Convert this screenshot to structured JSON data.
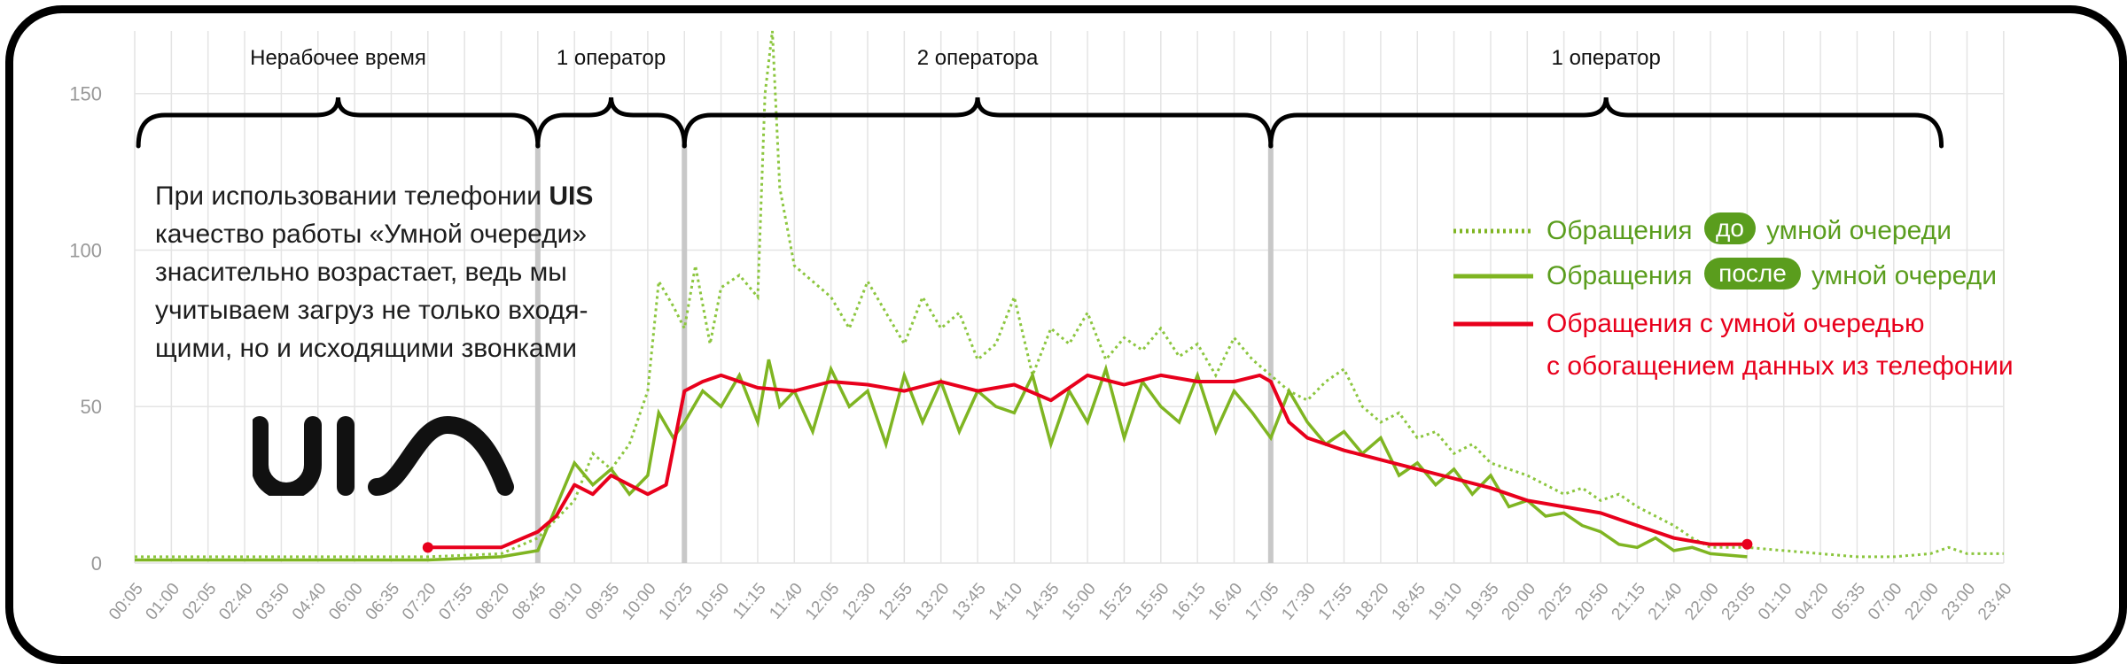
{
  "note": {
    "part1": "При использовании телефонии ",
    "brand": "UIS",
    "part2": " качество работы «Умной очереди» знасительно возрастает, ведь мы учитываем загруз не только входя-щими, но и исходящими звонками"
  },
  "logo_text": "uis",
  "colors": {
    "grid": "#e4e4e4",
    "before": "#8cc63f",
    "after": "#7fb522",
    "smart": "#e8001c",
    "legend_red": "#e8001c",
    "legend_green": "#5a9d1d",
    "divider": "#c8c8c8"
  },
  "legend": {
    "dotted": {
      "prefix": "Обращения",
      "badge": "до",
      "suffix": "умной очереди"
    },
    "solid": {
      "prefix": "Обращения",
      "badge": "после",
      "suffix": "умной очереди"
    },
    "red": {
      "line1": "Обращения с умной очередью",
      "line2": "с обогащением данных из телефонии"
    }
  },
  "chart_data": {
    "type": "line",
    "ylim": [
      0,
      170
    ],
    "y_ticks": [
      0,
      50,
      100,
      150
    ],
    "x_tick_labels": [
      "00:05",
      "01:00",
      "02:05",
      "02:40",
      "03:50",
      "04:40",
      "06:00",
      "06:35",
      "07:20",
      "07:55",
      "08:20",
      "08:45",
      "09:10",
      "09:35",
      "10:00",
      "10:25",
      "10:50",
      "11:15",
      "11:40",
      "12:05",
      "12:30",
      "12:55",
      "13:20",
      "13:45",
      "14:10",
      "14:35",
      "15:00",
      "15:25",
      "15:50",
      "16:15",
      "16:40",
      "17:05",
      "17:30",
      "17:55",
      "18:20",
      "18:45",
      "19:10",
      "19:35",
      "20:00",
      "20:25",
      "20:50",
      "21:15",
      "21:40",
      "22:00",
      "23:05",
      "01:10",
      "04:20",
      "05:35",
      "07:00",
      "22:00",
      "23:00",
      "23:40"
    ],
    "dividers_at_tick": [
      11,
      15,
      31
    ],
    "annotations": [
      {
        "label": "Нерабочее время",
        "from_tick": 0.1,
        "to_tick": 11
      },
      {
        "label": "1 оператор",
        "from_tick": 11,
        "to_tick": 15
      },
      {
        "label": "2 оператора",
        "from_tick": 15,
        "to_tick": 31
      },
      {
        "label": "1 оператор",
        "from_tick": 31,
        "to_tick": 49.3
      }
    ],
    "series": [
      {
        "style": "dotted",
        "x": [
          0,
          4,
          8,
          10,
          11,
          12,
          12.5,
          13,
          13.5,
          14,
          14.3,
          14.7,
          15,
          15.3,
          15.7,
          16,
          16.5,
          17,
          17.2,
          17.4,
          17.6,
          18,
          18.5,
          19,
          19.5,
          20,
          20.5,
          21,
          21.5,
          22,
          22.5,
          23,
          23.5,
          24,
          24.5,
          25,
          25.5,
          26,
          26.5,
          27,
          27.5,
          28,
          28.5,
          29,
          29.5,
          30,
          30.5,
          31,
          31.5,
          32,
          32.5,
          33,
          33.5,
          34,
          34.5,
          35,
          35.5,
          36,
          36.5,
          37,
          37.5,
          38,
          38.5,
          39,
          39.5,
          40,
          40.5,
          41,
          41.5,
          42,
          42.5,
          43,
          44,
          45,
          46,
          47,
          48,
          49,
          49.5,
          50,
          51
        ],
        "values": [
          2,
          2,
          2,
          3,
          8,
          20,
          35,
          30,
          38,
          55,
          90,
          82,
          75,
          95,
          70,
          88,
          92,
          85,
          150,
          170,
          120,
          95,
          90,
          85,
          75,
          90,
          80,
          70,
          85,
          75,
          80,
          65,
          70,
          85,
          60,
          75,
          70,
          80,
          65,
          72,
          68,
          75,
          66,
          70,
          60,
          72,
          65,
          60,
          55,
          52,
          58,
          62,
          50,
          45,
          48,
          40,
          42,
          35,
          38,
          32,
          30,
          28,
          25,
          22,
          24,
          20,
          22,
          18,
          15,
          12,
          8,
          5,
          5,
          4,
          3,
          2,
          2,
          3,
          5,
          3,
          3
        ]
      },
      {
        "style": "solid",
        "x": [
          0,
          4,
          8,
          10,
          11,
          11.5,
          12,
          12.5,
          13,
          13.5,
          14,
          14.3,
          14.7,
          15,
          15.5,
          16,
          16.5,
          17,
          17.3,
          17.6,
          18,
          18.5,
          19,
          19.5,
          20,
          20.5,
          21,
          21.5,
          22,
          22.5,
          23,
          23.5,
          24,
          24.5,
          25,
          25.5,
          26,
          26.5,
          27,
          27.5,
          28,
          28.5,
          29,
          29.5,
          30,
          30.5,
          31,
          31.5,
          32,
          32.5,
          33,
          33.5,
          34,
          34.5,
          35,
          35.5,
          36,
          36.5,
          37,
          37.5,
          38,
          38.5,
          39,
          39.5,
          40,
          40.5,
          41,
          41.5,
          42,
          42.5,
          43,
          44
        ],
        "values": [
          1,
          1,
          1,
          2,
          4,
          18,
          32,
          25,
          30,
          22,
          28,
          48,
          40,
          45,
          55,
          50,
          60,
          45,
          65,
          50,
          55,
          42,
          62,
          50,
          55,
          38,
          60,
          45,
          58,
          42,
          55,
          50,
          48,
          60,
          38,
          55,
          45,
          62,
          40,
          58,
          50,
          45,
          60,
          42,
          55,
          48,
          40,
          55,
          45,
          38,
          42,
          35,
          40,
          28,
          32,
          25,
          30,
          22,
          28,
          18,
          20,
          15,
          16,
          12,
          10,
          6,
          5,
          8,
          4,
          5,
          3,
          2
        ]
      },
      {
        "style": "red",
        "x": [
          8,
          10,
          11,
          11.5,
          12,
          12.5,
          13,
          13.5,
          14,
          14.5,
          15,
          15.5,
          16,
          17,
          18,
          19,
          20,
          21,
          22,
          23,
          24,
          25,
          26,
          27,
          28,
          29,
          30,
          30.7,
          31,
          31.5,
          32,
          33,
          34,
          35,
          36,
          37,
          38,
          39,
          40,
          41,
          42,
          43,
          44
        ],
        "values": [
          5,
          5,
          10,
          15,
          25,
          22,
          28,
          25,
          22,
          25,
          55,
          58,
          60,
          56,
          55,
          58,
          57,
          55,
          58,
          55,
          57,
          52,
          60,
          57,
          60,
          58,
          58,
          60,
          58,
          45,
          40,
          36,
          33,
          30,
          27,
          24,
          20,
          18,
          16,
          12,
          8,
          6,
          6
        ]
      }
    ]
  }
}
